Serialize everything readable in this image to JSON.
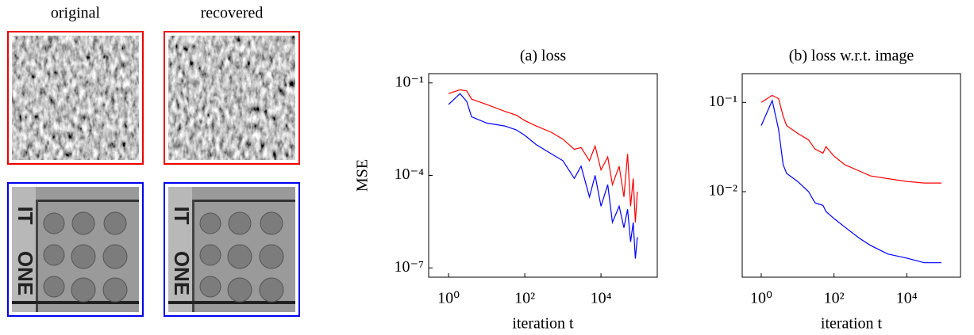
{
  "images": {
    "columns": [
      "original",
      "recovered"
    ]
  },
  "chart_data": [
    {
      "type": "line",
      "title": "(a) loss",
      "x_label": "iteration t",
      "y_label": "MSE",
      "log_x": true,
      "log_y": true,
      "xlim": [
        0.3,
        300000
      ],
      "ylim": [
        5e-08,
        0.2
      ],
      "xticks": [
        {
          "value": 1,
          "label": "10⁰"
        },
        {
          "value": 100,
          "label": "10²"
        },
        {
          "value": 10000,
          "label": "10⁴"
        }
      ],
      "yticks": [
        {
          "value": 0.1,
          "label": "10⁻¹"
        },
        {
          "value": 0.0001,
          "label": "10⁻⁴"
        },
        {
          "value": 1e-07,
          "label": "10⁻⁷"
        }
      ],
      "x": [
        1,
        2,
        3,
        4,
        10,
        30,
        60,
        100,
        200,
        500,
        1000,
        2000,
        3000,
        5000,
        7000,
        10000,
        15000,
        20000,
        30000,
        40000,
        50000,
        60000,
        70000,
        80000,
        90000
      ],
      "series": [
        {
          "color": "#ff0000",
          "values": [
            0.045,
            0.06,
            0.055,
            0.03,
            0.02,
            0.012,
            0.009,
            0.006,
            0.004,
            0.0025,
            0.0015,
            0.0007,
            0.0008,
            0.0003,
            0.0009,
            0.00015,
            0.0004,
            5e-05,
            0.0002,
            2e-05,
            0.0005,
            1e-05,
            8e-05,
            3e-06,
            3e-05
          ]
        },
        {
          "color": "#0000ff",
          "values": [
            0.02,
            0.045,
            0.025,
            0.008,
            0.005,
            0.004,
            0.003,
            0.002,
            0.001,
            0.0005,
            0.0003,
            8e-05,
            0.0002,
            2e-05,
            0.0001,
            1e-05,
            5e-05,
            3e-06,
            1e-05,
            2e-06,
            8e-06,
            7e-07,
            3e-06,
            2e-07,
            1e-06
          ]
        }
      ]
    },
    {
      "type": "line",
      "title": "(b) loss w.r.t. image",
      "x_label": "iteration t",
      "log_x": true,
      "log_y": true,
      "xlim": [
        0.3,
        300000
      ],
      "ylim": [
        0.0011,
        0.21
      ],
      "xticks": [
        {
          "value": 1,
          "label": "10⁰"
        },
        {
          "value": 100,
          "label": "10²"
        },
        {
          "value": 10000,
          "label": "10⁴"
        }
      ],
      "yticks": [
        {
          "value": 0.1,
          "label": "10⁻¹"
        },
        {
          "value": 0.01,
          "label": "10⁻²"
        }
      ],
      "x": [
        1,
        2,
        3,
        4,
        5,
        10,
        20,
        30,
        50,
        60,
        100,
        200,
        500,
        1000,
        3000,
        10000,
        30000,
        90000
      ],
      "series": [
        {
          "color": "#ff0000",
          "values": [
            0.1,
            0.12,
            0.11,
            0.07,
            0.055,
            0.045,
            0.038,
            0.03,
            0.027,
            0.032,
            0.025,
            0.02,
            0.017,
            0.015,
            0.014,
            0.013,
            0.0125,
            0.0125
          ]
        },
        {
          "color": "#0000ff",
          "values": [
            0.055,
            0.105,
            0.05,
            0.02,
            0.016,
            0.013,
            0.01,
            0.0075,
            0.007,
            0.006,
            0.005,
            0.004,
            0.003,
            0.0025,
            0.002,
            0.0018,
            0.0016,
            0.0016
          ]
        }
      ]
    }
  ]
}
